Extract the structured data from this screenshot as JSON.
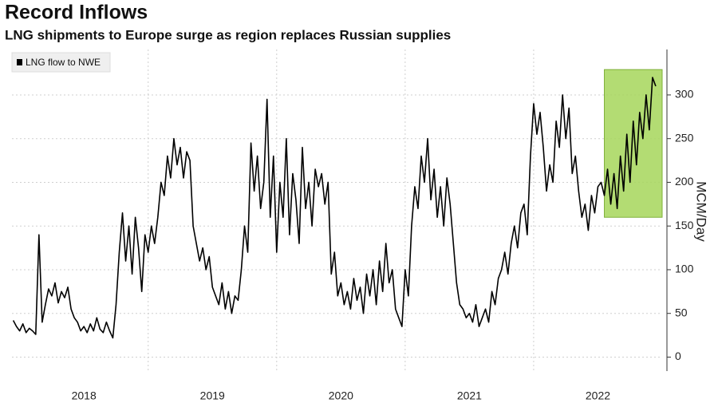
{
  "chart_data": {
    "type": "line",
    "title": "Record Inflows",
    "subtitle": "LNG shipments to Europe surge as region replaces Russian supplies",
    "y_label": "MCM/Day",
    "xlim": [
      2017.94,
      2023.0
    ],
    "xticks": [
      {
        "value": 2018.5,
        "label": "2018"
      },
      {
        "value": 2019.5,
        "label": "2019"
      },
      {
        "value": 2020.5,
        "label": "2020"
      },
      {
        "value": 2021.5,
        "label": "2021"
      },
      {
        "value": 2022.5,
        "label": "2022"
      }
    ],
    "xgrid": [
      2019,
      2020,
      2021,
      2022
    ],
    "ylim": [
      -16,
      352
    ],
    "yticks": [
      0,
      50,
      100,
      150,
      200,
      250,
      300
    ],
    "grid": true,
    "legend": "top-left",
    "highlight": {
      "xlim": [
        2022.55,
        2023.0
      ],
      "ylim": [
        160,
        329
      ],
      "color": "#a6d65a"
    },
    "x": [
      2017.95,
      2017.975,
      2018,
      2018.025,
      2018.05,
      2018.075,
      2018.1,
      2018.125,
      2018.15,
      2018.175,
      2018.2,
      2018.225,
      2018.25,
      2018.275,
      2018.3,
      2018.325,
      2018.35,
      2018.375,
      2018.4,
      2018.425,
      2018.45,
      2018.475,
      2018.5,
      2018.525,
      2018.55,
      2018.575,
      2018.6,
      2018.625,
      2018.65,
      2018.675,
      2018.7,
      2018.725,
      2018.75,
      2018.775,
      2018.8,
      2018.825,
      2018.85,
      2018.875,
      2018.9,
      2018.925,
      2018.95,
      2018.975,
      2019,
      2019.025,
      2019.05,
      2019.075,
      2019.1,
      2019.125,
      2019.15,
      2019.175,
      2019.2,
      2019.225,
      2019.25,
      2019.275,
      2019.3,
      2019.325,
      2019.35,
      2019.375,
      2019.4,
      2019.425,
      2019.45,
      2019.475,
      2019.5,
      2019.525,
      2019.55,
      2019.575,
      2019.6,
      2019.625,
      2019.65,
      2019.675,
      2019.7,
      2019.725,
      2019.75,
      2019.775,
      2019.8,
      2019.825,
      2019.85,
      2019.875,
      2019.9,
      2019.925,
      2019.95,
      2019.975,
      2020,
      2020.025,
      2020.05,
      2020.075,
      2020.1,
      2020.125,
      2020.15,
      2020.175,
      2020.2,
      2020.225,
      2020.25,
      2020.275,
      2020.3,
      2020.325,
      2020.35,
      2020.375,
      2020.4,
      2020.425,
      2020.45,
      2020.475,
      2020.5,
      2020.525,
      2020.55,
      2020.575,
      2020.6,
      2020.625,
      2020.65,
      2020.675,
      2020.7,
      2020.725,
      2020.75,
      2020.775,
      2020.8,
      2020.825,
      2020.85,
      2020.875,
      2020.9,
      2020.925,
      2020.95,
      2020.975,
      2021,
      2021.025,
      2021.05,
      2021.075,
      2021.1,
      2021.125,
      2021.15,
      2021.175,
      2021.2,
      2021.225,
      2021.25,
      2021.275,
      2021.3,
      2021.325,
      2021.35,
      2021.375,
      2021.4,
      2021.425,
      2021.45,
      2021.475,
      2021.5,
      2021.525,
      2021.55,
      2021.575,
      2021.6,
      2021.625,
      2021.65,
      2021.675,
      2021.7,
      2021.725,
      2021.75,
      2021.775,
      2021.8,
      2021.825,
      2021.85,
      2021.875,
      2021.9,
      2021.925,
      2021.95,
      2021.975,
      2022,
      2022.025,
      2022.05,
      2022.075,
      2022.1,
      2022.125,
      2022.15,
      2022.175,
      2022.2,
      2022.225,
      2022.25,
      2022.275,
      2022.3,
      2022.325,
      2022.35,
      2022.375,
      2022.4,
      2022.425,
      2022.45,
      2022.475,
      2022.5,
      2022.525,
      2022.55,
      2022.575,
      2022.6,
      2022.625,
      2022.65,
      2022.675,
      2022.7,
      2022.725,
      2022.75,
      2022.775,
      2022.8,
      2022.825,
      2022.85,
      2022.875,
      2022.9,
      2022.925,
      2022.95
    ],
    "series": [
      {
        "name": "LNG flow to NWE",
        "color": "#000000",
        "values": [
          42,
          35,
          30,
          38,
          28,
          33,
          30,
          26,
          140,
          40,
          60,
          78,
          70,
          85,
          62,
          75,
          68,
          80,
          55,
          45,
          40,
          30,
          35,
          28,
          38,
          30,
          45,
          32,
          28,
          40,
          30,
          22,
          60,
          120,
          165,
          110,
          150,
          95,
          160,
          125,
          75,
          140,
          120,
          150,
          130,
          160,
          200,
          185,
          230,
          205,
          250,
          220,
          240,
          205,
          235,
          225,
          150,
          130,
          110,
          125,
          100,
          115,
          80,
          70,
          60,
          85,
          55,
          75,
          50,
          70,
          65,
          100,
          150,
          120,
          245,
          190,
          230,
          170,
          200,
          295,
          160,
          230,
          120,
          200,
          160,
          250,
          140,
          210,
          180,
          130,
          240,
          170,
          200,
          150,
          215,
          195,
          210,
          175,
          200,
          95,
          120,
          70,
          85,
          60,
          75,
          55,
          90,
          65,
          80,
          50,
          95,
          70,
          100,
          60,
          110,
          75,
          130,
          85,
          100,
          55,
          45,
          35,
          100,
          70,
          150,
          195,
          170,
          230,
          200,
          250,
          180,
          215,
          160,
          195,
          150,
          205,
          175,
          130,
          85,
          60,
          55,
          45,
          50,
          40,
          60,
          35,
          45,
          55,
          40,
          75,
          60,
          90,
          100,
          120,
          95,
          130,
          150,
          125,
          165,
          175,
          140,
          230,
          290,
          255,
          280,
          240,
          190,
          220,
          200,
          270,
          240,
          300,
          250,
          285,
          210,
          230,
          190,
          160,
          175,
          145,
          185,
          165,
          195,
          200,
          185,
          215,
          175,
          210,
          170,
          230,
          190,
          255,
          200,
          270,
          220,
          280,
          250,
          300,
          260,
          320,
          310
        ]
      }
    ]
  }
}
